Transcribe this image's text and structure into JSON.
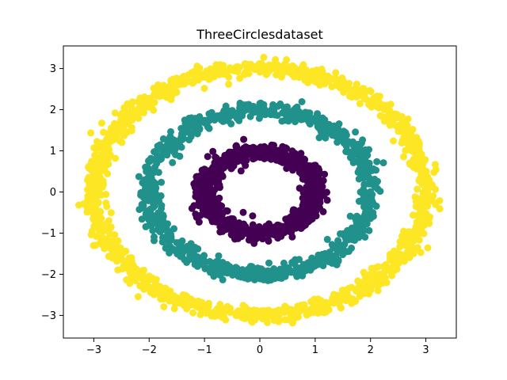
{
  "chart_data": {
    "type": "scatter",
    "title": "ThreeCirclesdataset",
    "xlabel": "",
    "ylabel": "",
    "xlim": [
      -3.55,
      3.55
    ],
    "ylim": [
      -3.55,
      3.55
    ],
    "xticks": [
      -3,
      -2,
      -1,
      0,
      1,
      2,
      3
    ],
    "yticks": [
      -3,
      -2,
      -1,
      0,
      1,
      2,
      3
    ],
    "grid": false,
    "legend": "none",
    "rings": [
      {
        "class": 0,
        "color": "#440154",
        "mean_radius": 1.0,
        "approx_points": 900,
        "points": [
          [
            1.0,
            0.0
          ],
          [
            0.92,
            0.38
          ],
          [
            0.71,
            0.71
          ],
          [
            0.38,
            0.92
          ],
          [
            0.0,
            1.0
          ],
          [
            -0.38,
            0.92
          ],
          [
            -0.71,
            0.71
          ],
          [
            -0.92,
            0.38
          ],
          [
            -1.0,
            0.0
          ],
          [
            -0.92,
            -0.38
          ],
          [
            -0.71,
            -0.71
          ],
          [
            -0.38,
            -0.92
          ],
          [
            0.0,
            -1.0
          ],
          [
            0.38,
            -0.92
          ],
          [
            0.71,
            -0.71
          ],
          [
            0.92,
            -0.38
          ]
        ]
      },
      {
        "class": 1,
        "color": "#21918c",
        "mean_radius": 2.0,
        "approx_points": 900,
        "points": [
          [
            2.0,
            0.0
          ],
          [
            1.85,
            0.77
          ],
          [
            1.41,
            1.41
          ],
          [
            0.77,
            1.85
          ],
          [
            0.0,
            2.0
          ],
          [
            -0.77,
            1.85
          ],
          [
            -1.41,
            1.41
          ],
          [
            -1.85,
            0.77
          ],
          [
            -2.0,
            0.0
          ],
          [
            -1.85,
            -0.77
          ],
          [
            -1.41,
            -1.41
          ],
          [
            -0.77,
            -1.85
          ],
          [
            0.0,
            -2.0
          ],
          [
            0.77,
            -1.85
          ],
          [
            1.41,
            -1.41
          ],
          [
            1.85,
            -0.77
          ]
        ]
      },
      {
        "class": 2,
        "color": "#fde725",
        "mean_radius": 3.0,
        "approx_points": 1300,
        "points": [
          [
            3.0,
            0.0
          ],
          [
            2.77,
            1.15
          ],
          [
            2.12,
            2.12
          ],
          [
            1.15,
            2.77
          ],
          [
            0.0,
            3.0
          ],
          [
            -1.15,
            2.77
          ],
          [
            -2.12,
            2.12
          ],
          [
            -2.77,
            1.15
          ],
          [
            -3.0,
            0.0
          ],
          [
            -2.77,
            -1.15
          ],
          [
            -2.12,
            -2.12
          ],
          [
            -1.15,
            -2.77
          ],
          [
            0.0,
            -3.0
          ],
          [
            1.15,
            -2.77
          ],
          [
            2.12,
            -2.12
          ],
          [
            2.77,
            -1.15
          ]
        ]
      }
    ]
  }
}
